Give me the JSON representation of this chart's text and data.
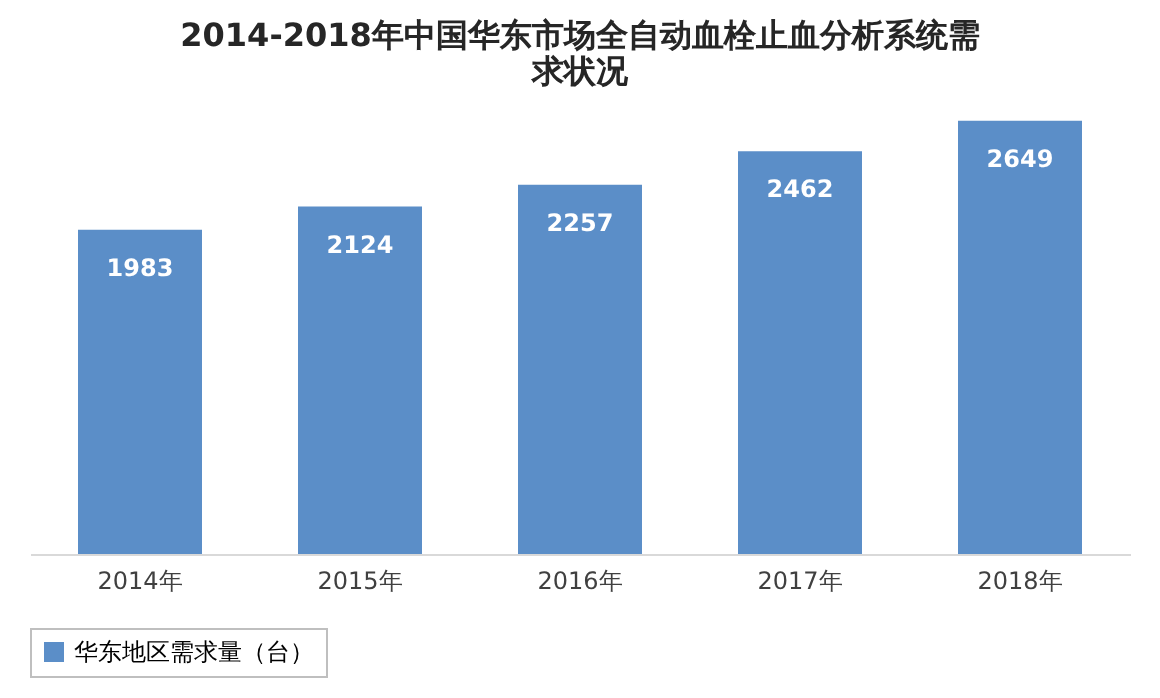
{
  "chart_data": {
    "type": "bar",
    "title": "2014-2018年中国华东市场全自动血栓止血分析系统需求状况",
    "categories": [
      "2014年",
      "2015年",
      "2016年",
      "2017年",
      "2018年"
    ],
    "series": [
      {
        "name": "华东地区需求量（台）",
        "color": "#5b8ec8",
        "values": [
          1983,
          2124,
          2257,
          2462,
          2649
        ]
      }
    ],
    "data_labels": true,
    "legend": "bottom",
    "grid": false
  }
}
